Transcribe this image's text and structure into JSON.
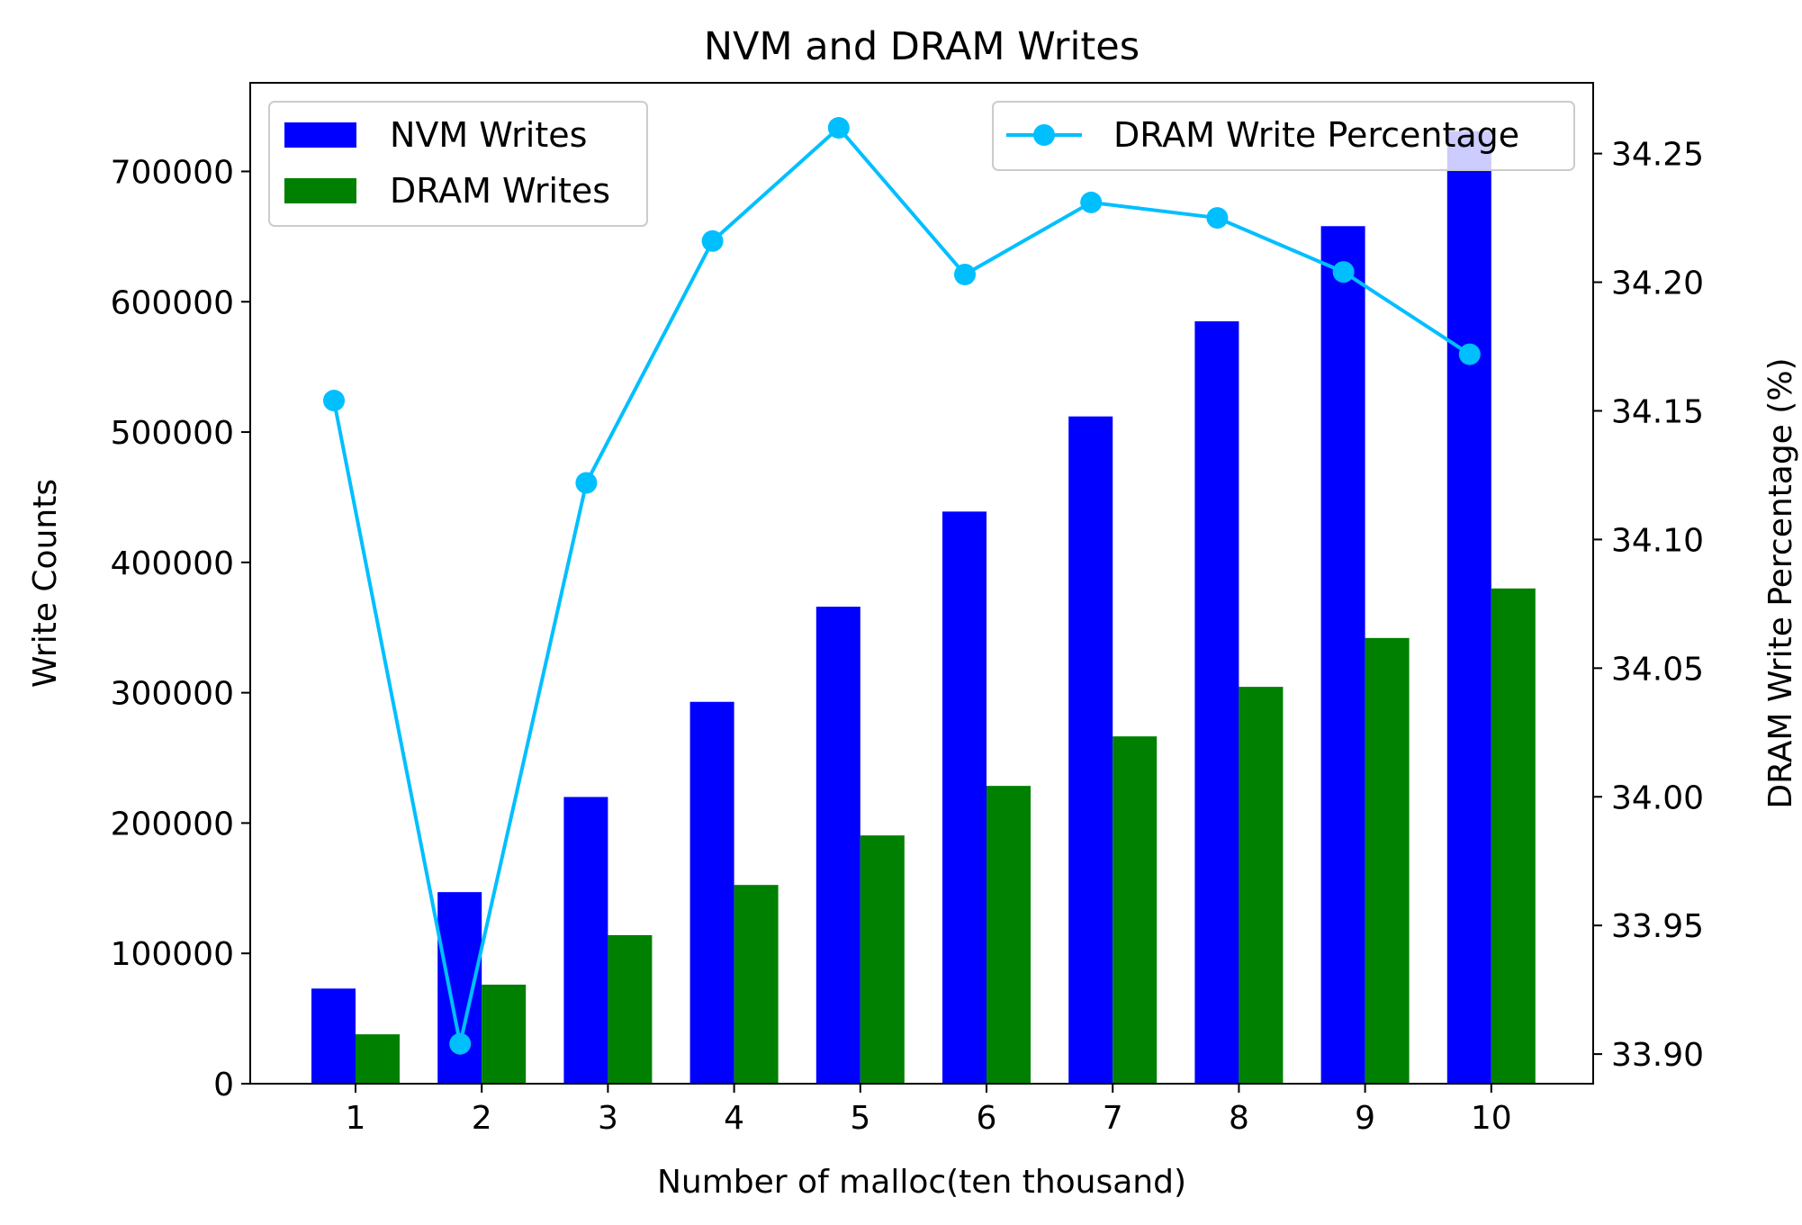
{
  "chart_data": {
    "type": "bar",
    "title": "NVM and DRAM Writes",
    "xlabel": "Number of malloc(ten thousand)",
    "ylabel": "Write Counts",
    "y2label": "DRAM Write Percentage (%)",
    "categories": [
      "1",
      "2",
      "3",
      "4",
      "5",
      "6",
      "7",
      "8",
      "9",
      "10"
    ],
    "series": [
      {
        "name": "NVM Writes",
        "type": "bar",
        "axis": "left",
        "color": "#0000ff",
        "values": [
          73000,
          147000,
          220000,
          293000,
          366000,
          439000,
          512000,
          585000,
          658000,
          731000
        ]
      },
      {
        "name": "DRAM Writes",
        "type": "bar",
        "axis": "left",
        "color": "#008000",
        "values": [
          37900,
          76000,
          114000,
          152500,
          190500,
          228500,
          266500,
          304500,
          342000,
          380000
        ]
      },
      {
        "name": "DRAM Write Percentage",
        "type": "line",
        "axis": "right",
        "color": "#00bfff",
        "values": [
          34.154,
          33.904,
          34.122,
          34.216,
          34.26,
          34.203,
          34.231,
          34.225,
          34.204,
          34.172
        ]
      }
    ],
    "ylim": [
      0,
      768000
    ],
    "yticks": [
      0,
      100000,
      200000,
      300000,
      400000,
      500000,
      600000,
      700000
    ],
    "y2lim": [
      33.8885,
      34.2775
    ],
    "y2ticks": [
      "33.90",
      "33.95",
      "34.00",
      "34.05",
      "34.10",
      "34.15",
      "34.20",
      "34.25"
    ],
    "grid": false,
    "legends": [
      {
        "placement": "upper-left",
        "entries": [
          "NVM Writes",
          "DRAM Writes"
        ]
      },
      {
        "placement": "upper-right",
        "entries": [
          "DRAM Write Percentage"
        ]
      }
    ]
  }
}
